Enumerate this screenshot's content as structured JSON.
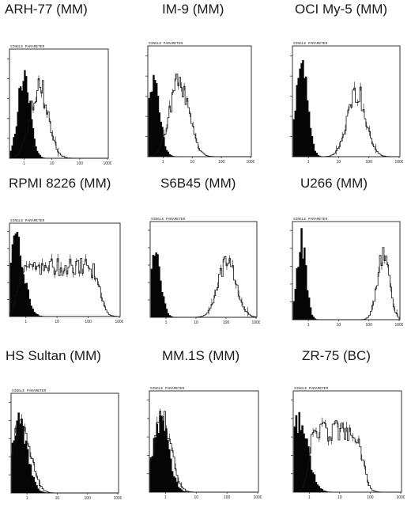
{
  "figure": {
    "panels": [
      {
        "title": "ARH-77 (MM)",
        "header_label": "SINGLE PARAMETER",
        "x_ticks": [
          "1",
          "10",
          "100",
          "1000"
        ]
      },
      {
        "title": "IM-9 (MM)",
        "header_label": "SINGLE PARAMETER",
        "x_ticks": [
          "1",
          "10",
          "100",
          "1000"
        ]
      },
      {
        "title": "OCI My-5 (MM)",
        "header_label": "SINGLE PARAMETER",
        "x_ticks": [
          "1",
          "10",
          "100",
          "1000"
        ]
      },
      {
        "title": "RPMI 8226 (MM)",
        "header_label": "SINGLE PARAMETER",
        "x_ticks": [
          "1",
          "10",
          "100",
          "1000"
        ]
      },
      {
        "title": "S6B45 (MM)",
        "header_label": "SINGLE PARAMETER",
        "x_ticks": [
          "1",
          "10",
          "100",
          "1000"
        ]
      },
      {
        "title": "U266 (MM)",
        "header_label": "SINGLE PARAMETER",
        "x_ticks": [
          "1",
          "10",
          "100",
          "1000"
        ]
      },
      {
        "title": "HS Sultan (MM)",
        "header_label": "SINGLE PARAMETER",
        "x_ticks": [
          "1",
          "10",
          "100",
          "1000"
        ]
      },
      {
        "title": "MM.1S (MM)",
        "header_label": "SINGLE PARAMETER",
        "x_ticks": [
          "1",
          "10",
          "100",
          "1000"
        ]
      },
      {
        "title": "ZR-75 (BC)",
        "header_label": "SINGLE PARAMETER",
        "x_ticks": [
          "1",
          "10",
          "100",
          "1000"
        ]
      }
    ]
  },
  "chart_data": [
    {
      "type": "area",
      "title": "ARH-77 (MM)",
      "xscale": "log",
      "xlim": [
        1,
        1000
      ],
      "x_ticks": [
        1,
        10,
        100,
        1000
      ],
      "series": [
        {
          "style": "filled",
          "peak_x": 1.0,
          "width_decades": 0.22,
          "height": 0.78
        },
        {
          "style": "outline",
          "peak_x": 3.5,
          "width_decades": 0.32,
          "height": 0.68
        }
      ]
    },
    {
      "type": "area",
      "title": "IM-9 (MM)",
      "xscale": "log",
      "xlim": [
        1,
        1000
      ],
      "x_ticks": [
        1,
        10,
        100,
        1000
      ],
      "series": [
        {
          "style": "filled",
          "peak_x": 0.45,
          "width_decades": 0.22,
          "height": 0.7
        },
        {
          "style": "outline",
          "peak_x": 3.6,
          "width_decades": 0.33,
          "height": 0.68
        }
      ]
    },
    {
      "type": "area",
      "title": "OCI My-5 (MM)",
      "xscale": "log",
      "xlim": [
        1,
        1000
      ],
      "x_ticks": [
        1,
        10,
        100,
        1000
      ],
      "series": [
        {
          "style": "filled",
          "peak_x": 0.6,
          "width_decades": 0.19,
          "height": 0.9
        },
        {
          "style": "outline",
          "peak_x": 40,
          "width_decades": 0.3,
          "height": 0.6
        }
      ]
    },
    {
      "type": "area",
      "title": "RPMI 8226 (MM)",
      "xscale": "log",
      "xlim": [
        1,
        1000
      ],
      "x_ticks": [
        1,
        10,
        100,
        1000
      ],
      "series": [
        {
          "style": "filled",
          "peak_x": 0.5,
          "width_decades": 0.25,
          "height": 0.8
        },
        {
          "style": "outline_plateau",
          "x_from": 0.5,
          "x_to": 250,
          "height": 0.55
        }
      ]
    },
    {
      "type": "area",
      "title": "S6B45 (MM)",
      "xscale": "log",
      "xlim": [
        1,
        1000
      ],
      "x_ticks": [
        1,
        10,
        100,
        1000
      ],
      "series": [
        {
          "style": "filled",
          "peak_x": 0.45,
          "width_decades": 0.18,
          "height": 0.7
        },
        {
          "style": "outline",
          "peak_x": 110,
          "width_decades": 0.3,
          "height": 0.6
        }
      ]
    },
    {
      "type": "area",
      "title": "U266 (MM)",
      "xscale": "log",
      "xlim": [
        1,
        1000
      ],
      "x_ticks": [
        1,
        10,
        100,
        1000
      ],
      "series": [
        {
          "style": "filled",
          "peak_x": 0.6,
          "width_decades": 0.15,
          "height": 0.82
        },
        {
          "style": "outline",
          "peak_x": 300,
          "width_decades": 0.2,
          "height": 0.7
        }
      ]
    },
    {
      "type": "area",
      "title": "HS Sultan (MM)",
      "xscale": "log",
      "xlim": [
        1,
        1000
      ],
      "x_ticks": [
        1,
        10,
        100,
        1000
      ],
      "series": [
        {
          "style": "filled",
          "peak_x": 0.55,
          "width_decades": 0.27,
          "height": 0.72
        },
        {
          "style": "outline",
          "peak_x": 0.65,
          "width_decades": 0.3,
          "height": 0.7
        }
      ]
    },
    {
      "type": "area",
      "title": "MM.1S (MM)",
      "xscale": "log",
      "xlim": [
        1,
        1000
      ],
      "x_ticks": [
        1,
        10,
        100,
        1000
      ],
      "series": [
        {
          "style": "filled",
          "peak_x": 0.7,
          "width_decades": 0.26,
          "height": 0.75
        },
        {
          "style": "outline",
          "peak_x": 0.8,
          "width_decades": 0.28,
          "height": 0.75
        }
      ]
    },
    {
      "type": "area",
      "title": "ZR-75 (BC)",
      "xscale": "log",
      "xlim": [
        1,
        1000
      ],
      "x_ticks": [
        1,
        10,
        100,
        1000
      ],
      "series": [
        {
          "style": "filled",
          "peak_x": 0.45,
          "width_decades": 0.3,
          "height": 0.72
        },
        {
          "style": "outline_plateau",
          "x_from": 0.9,
          "x_to": 60,
          "height": 0.62
        }
      ]
    }
  ]
}
